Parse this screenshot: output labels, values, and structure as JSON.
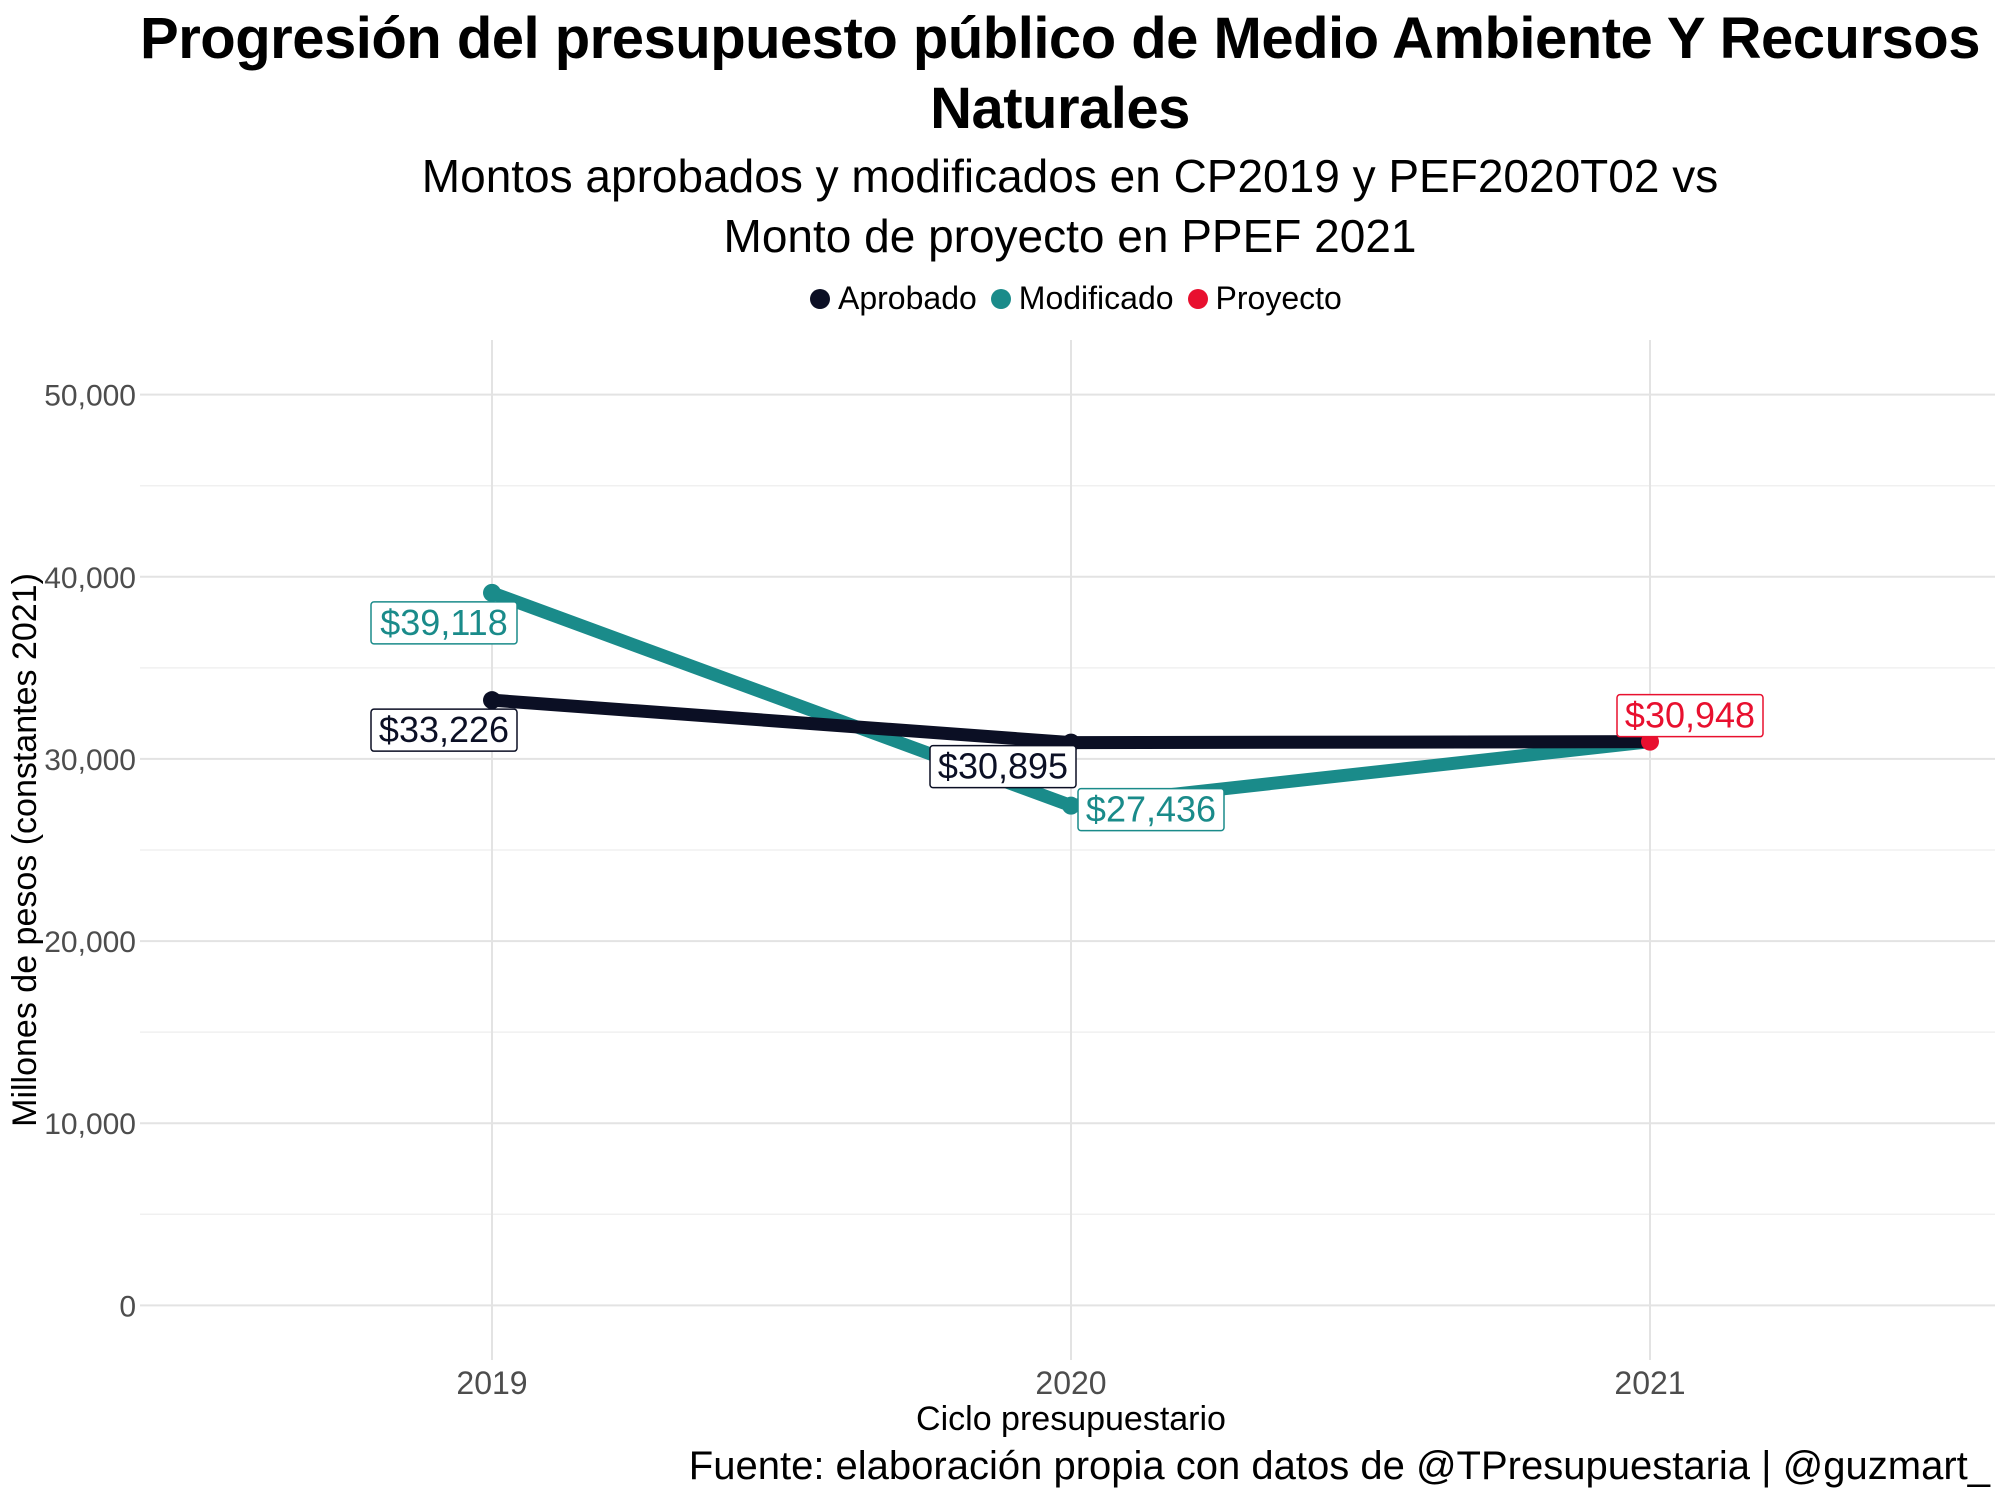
{
  "chart_data": {
    "type": "line",
    "title_line1": "Progresión del presupuesto público de Medio Ambiente Y Recursos",
    "title_line2": "Naturales",
    "subtitle_line1": "Montos aprobados y modificados en CP2019 y PEF2020T02 vs",
    "subtitle_line2": "Monto de proyecto en PPEF 2021",
    "xlabel": "Ciclo presupuestario",
    "ylabel": "Millones de pesos (constantes 2021)",
    "caption": "Fuente: elaboración propia con datos de @TPresupuestaria | @guzmart_",
    "x": [
      "2019",
      "2020",
      "2021"
    ],
    "ylim": [
      0,
      50000
    ],
    "yticks": [
      0,
      10000,
      20000,
      30000,
      40000,
      50000
    ],
    "ytick_labels": [
      "0",
      "10,000",
      "20,000",
      "30,000",
      "40,000",
      "50,000"
    ],
    "grid": true,
    "legend_position": "top",
    "series": [
      {
        "name": "Aprobado",
        "color": "#0b0f24",
        "values": [
          33226,
          30895,
          30948
        ],
        "labels": [
          "$33,226",
          "$30,895",
          null
        ]
      },
      {
        "name": "Modificado",
        "color": "#1a8b8a",
        "values": [
          39118,
          27436,
          30948
        ],
        "labels": [
          "$39,118",
          "$27,436",
          null
        ]
      },
      {
        "name": "Proyecto",
        "color": "#e8102f",
        "values": [
          null,
          null,
          30948
        ],
        "labels": [
          null,
          null,
          "$30,948"
        ]
      }
    ]
  }
}
